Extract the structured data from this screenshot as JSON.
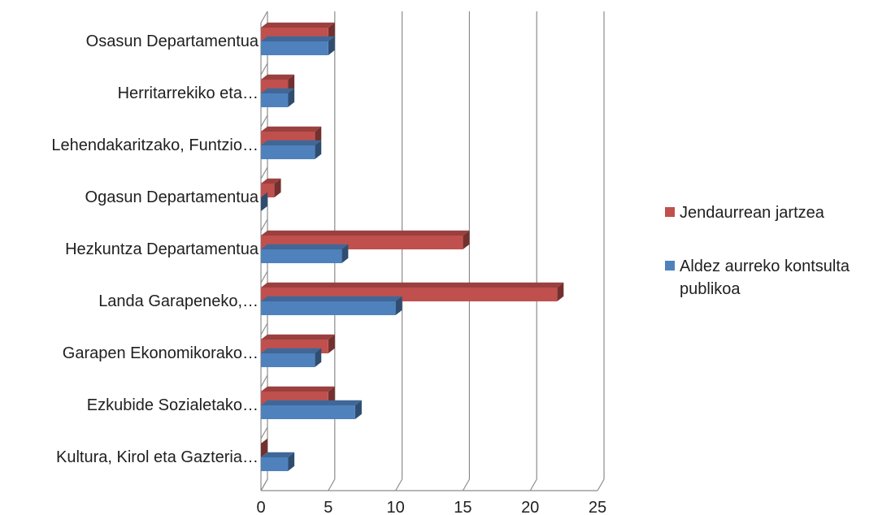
{
  "chart_data": {
    "type": "bar",
    "orientation": "horizontal",
    "style": "3d",
    "categories": [
      "Osasun Departamentua",
      "Herritarrekiko eta…",
      "Lehendakaritzako, Funtzio…",
      "Ogasun Departamentua",
      "Hezkuntza Departamentua",
      "Landa Garapeneko,…",
      "Garapen Ekonomikorako…",
      "Ezkubide Sozialetako…",
      "Kultura, Kirol eta Gazteria…"
    ],
    "series": [
      {
        "name": "Jendaurrean jartzea",
        "color": "#c0504d",
        "values": [
          5,
          2,
          4,
          1,
          15,
          22,
          5,
          5,
          0
        ]
      },
      {
        "name": "Aldez aurreko kontsulta publikoa",
        "color": "#4f81bd",
        "values": [
          5,
          2,
          4,
          0,
          6,
          10,
          4,
          7,
          2
        ]
      }
    ],
    "xticks": [
      "0",
      "5",
      "10",
      "15",
      "20",
      "25"
    ],
    "xlim": [
      0,
      25
    ],
    "grid": "vertical",
    "legend_position": "right"
  }
}
